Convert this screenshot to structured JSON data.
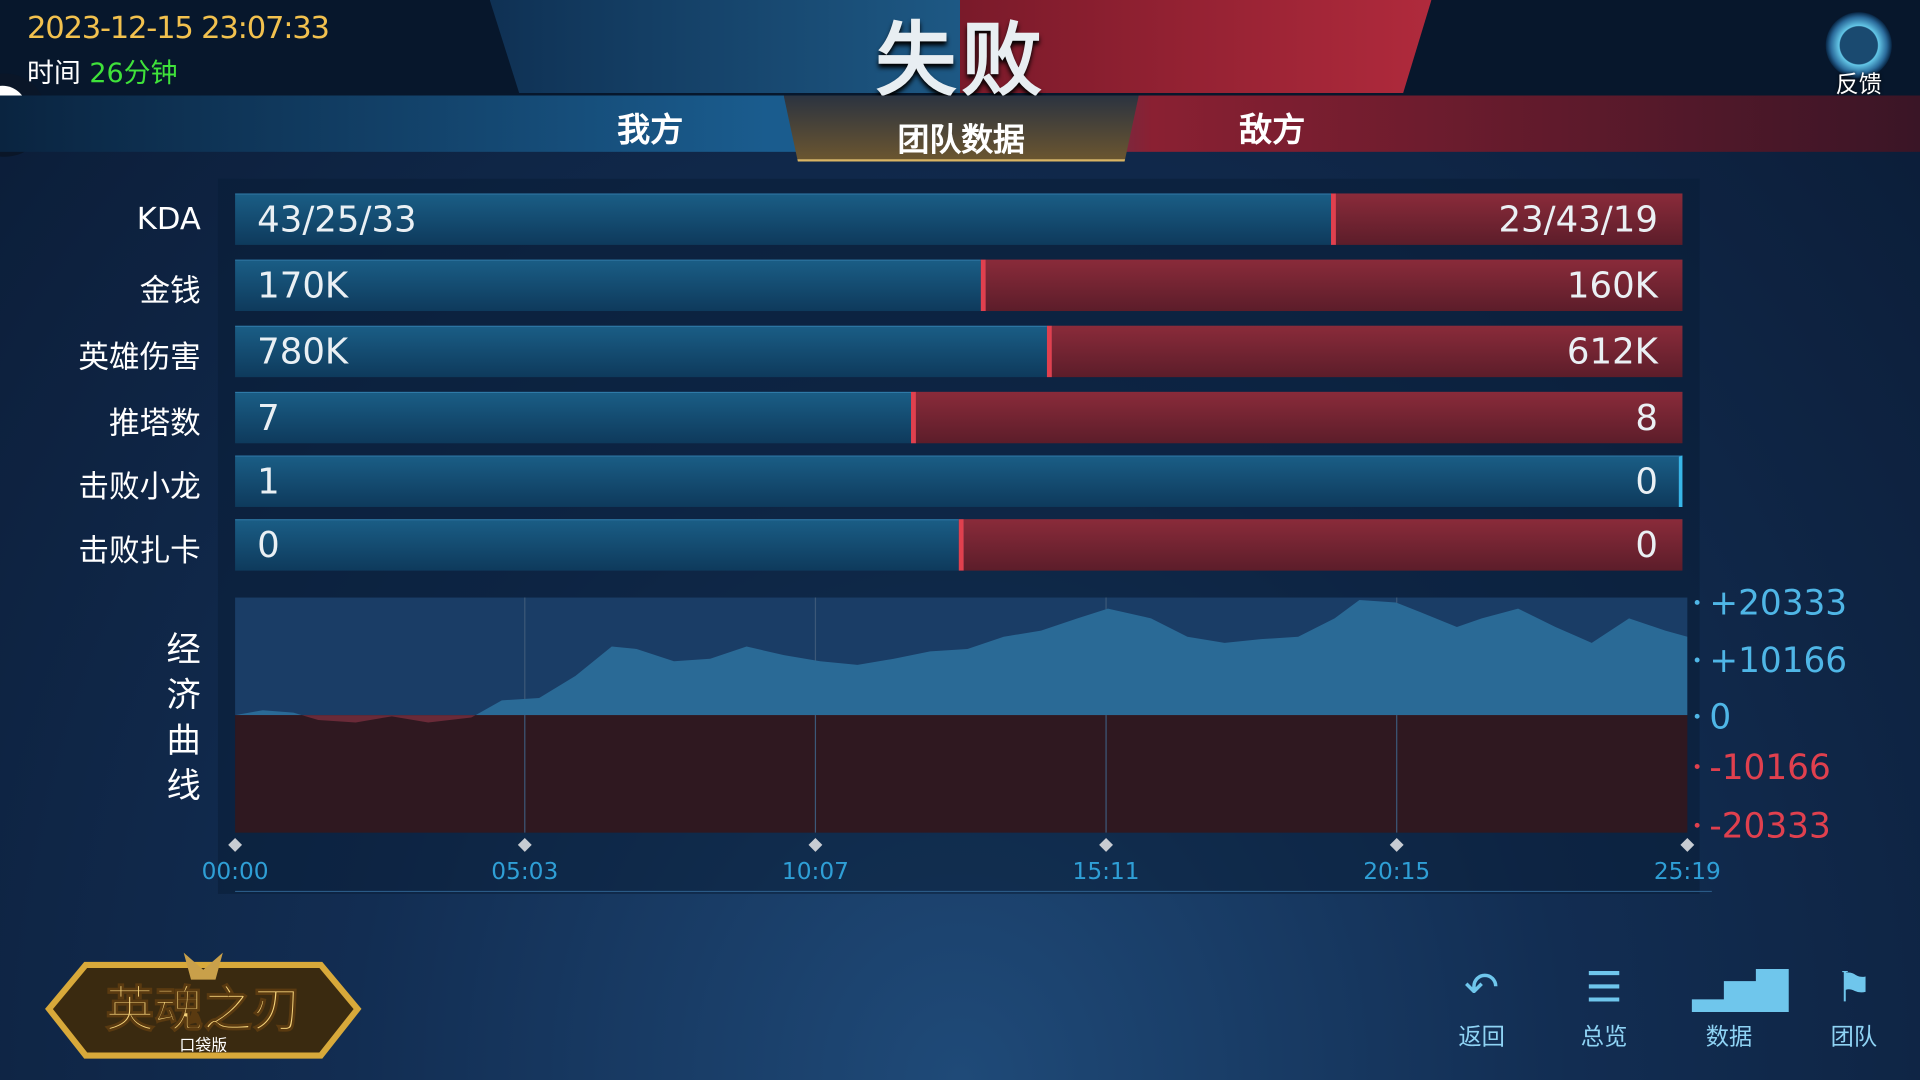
{
  "header": {
    "datetime": "2023-12-15 23:07:33",
    "duration_label": "时间",
    "duration_value": "26分钟",
    "result": "失败",
    "feedback": "反馈"
  },
  "tabs": {
    "ours": "我方",
    "team_data": "团队数据",
    "enemy": "敌方"
  },
  "colors": {
    "ours": "#1a5d85",
    "enemy": "#8a2b3a",
    "positive": "#4fb6e6",
    "negative": "#e0404e",
    "date": "#f2c14e",
    "duration": "#3fe23a"
  },
  "stats": [
    {
      "label": "KDA",
      "ours": "43/25/33",
      "enemy": "23/43/19",
      "ours_share": 0.757
    },
    {
      "label": "金钱",
      "ours": "170K",
      "enemy": "160K",
      "ours_share": 0.515
    },
    {
      "label": "英雄伤害",
      "ours": "780K",
      "enemy": "612K",
      "ours_share": 0.561
    },
    {
      "label": "推塔数",
      "ours": "7",
      "enemy": "8",
      "ours_share": 0.467
    },
    {
      "label": "击败小龙",
      "ours": "1",
      "enemy": "0",
      "ours_share": 1.0
    },
    {
      "label": "击败扎卡",
      "ours": "0",
      "enemy": "0",
      "ours_share": 0.5
    }
  ],
  "chart_data": {
    "type": "area",
    "title": "经济曲线",
    "x_ticks": [
      "00:00",
      "05:03",
      "10:07",
      "15:11",
      "20:15",
      "25:19"
    ],
    "y_ticks": [
      "+20333",
      "+10166",
      "0",
      "-10166",
      "-20333"
    ],
    "ylim": [
      -20333,
      20333
    ],
    "xlim": [
      "00:00",
      "25:19"
    ],
    "points": [
      [
        "00:00",
        0
      ],
      [
        "00:29",
        884
      ],
      [
        "01:01",
        442
      ],
      [
        "01:27",
        -884
      ],
      [
        "02:06",
        -1326
      ],
      [
        "02:44",
        -221
      ],
      [
        "03:22",
        -1326
      ],
      [
        "04:07",
        -442
      ],
      [
        "04:39",
        2652
      ],
      [
        "05:18",
        3094
      ],
      [
        "05:56",
        7072
      ],
      [
        "06:34",
        12376
      ],
      [
        "07:00",
        11934
      ],
      [
        "07:39",
        9724
      ],
      [
        "08:17",
        10166
      ],
      [
        "08:55",
        12376
      ],
      [
        "09:34",
        10829
      ],
      [
        "10:12",
        9724
      ],
      [
        "10:51",
        9061
      ],
      [
        "11:29",
        10166
      ],
      [
        "12:07",
        11492
      ],
      [
        "12:46",
        11934
      ],
      [
        "13:24",
        14144
      ],
      [
        "14:03",
        15249
      ],
      [
        "14:41",
        17459
      ],
      [
        "15:13",
        19227
      ],
      [
        "15:58",
        17459
      ],
      [
        "16:36",
        14144
      ],
      [
        "17:15",
        13039
      ],
      [
        "17:53",
        13702
      ],
      [
        "18:32",
        14144
      ],
      [
        "19:10",
        17459
      ],
      [
        "19:36",
        20774
      ],
      [
        "20:14",
        20332
      ],
      [
        "20:40",
        18564
      ],
      [
        "21:18",
        15912
      ],
      [
        "21:44",
        17459
      ],
      [
        "22:22",
        19227
      ],
      [
        "23:01",
        15912
      ],
      [
        "23:39",
        13039
      ],
      [
        "24:18",
        17459
      ],
      [
        "24:56",
        15249
      ],
      [
        "25:19",
        14144
      ]
    ]
  },
  "logo": {
    "text": "英魂之刃",
    "sub": "口袋版"
  },
  "nav": [
    {
      "label": "返回",
      "icon": "back-arrow-icon"
    },
    {
      "label": "总览",
      "icon": "list-icon"
    },
    {
      "label": "数据",
      "icon": "bar-chart-icon"
    },
    {
      "label": "团队",
      "icon": "flag-icon"
    }
  ]
}
